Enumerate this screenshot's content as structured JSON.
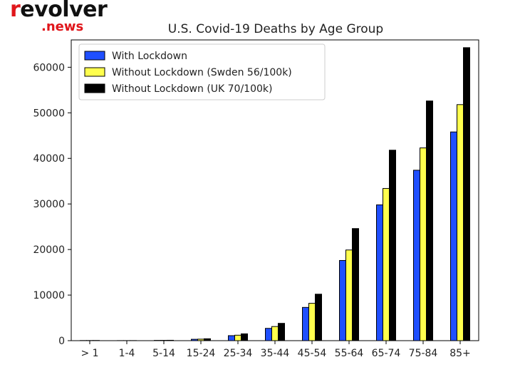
{
  "logo": {
    "main_prefix": "r",
    "main_rest": "evolver",
    "sub": ".news",
    "colors": {
      "red": "#e0161b",
      "dark": "#111111"
    }
  },
  "chart_data": {
    "type": "bar",
    "title": "U.S. Covid-19 Deaths by Age Group",
    "xlabel": "",
    "ylabel": "",
    "categories": [
      "> 1",
      "1-4",
      "5-14",
      "15-24",
      "25-34",
      "35-44",
      "45-54",
      "55-64",
      "65-74",
      "75-84",
      "85+"
    ],
    "ylim": [
      0,
      66000
    ],
    "yticks": [
      0,
      10000,
      20000,
      30000,
      40000,
      50000,
      60000
    ],
    "grid": false,
    "legend_position": "top-left",
    "series": [
      {
        "name": "With Lockdown",
        "color": "#1f4fff",
        "values": [
          30,
          15,
          60,
          300,
          1100,
          2700,
          7300,
          17600,
          29800,
          37400,
          45800
        ]
      },
      {
        "name": "Without Lockdown (Swden 56/100k)",
        "color": "#ffff4d",
        "values": [
          35,
          17,
          70,
          330,
          1200,
          3100,
          8200,
          19900,
          33400,
          42300,
          51800
        ]
      },
      {
        "name": "Without Lockdown (UK 70/100k)",
        "color": "#000000",
        "values": [
          45,
          22,
          85,
          420,
          1500,
          3800,
          10200,
          24600,
          41800,
          52600,
          64300
        ]
      }
    ]
  }
}
